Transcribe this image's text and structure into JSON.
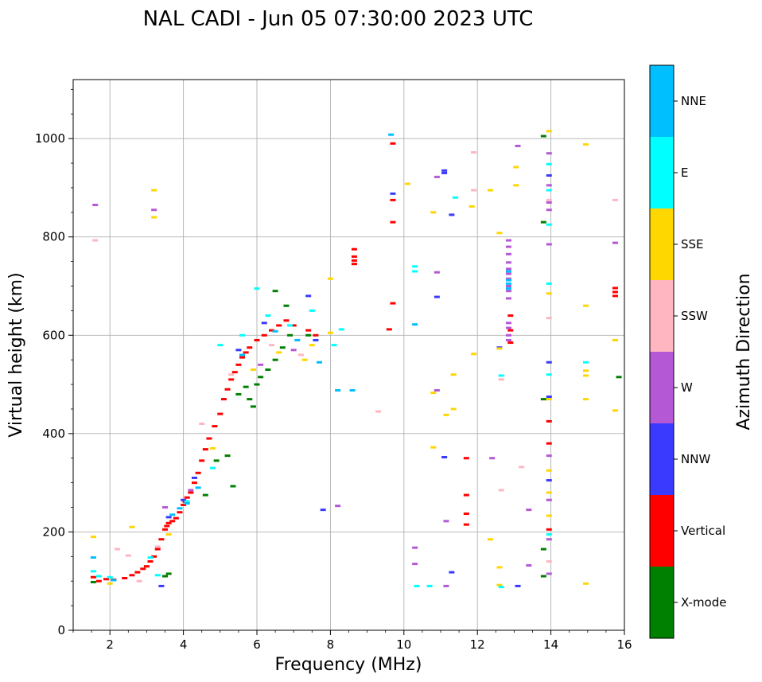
{
  "chart_data": {
    "type": "scatter",
    "title": "NAL CADI - Jun 05 07:30:00 2023 UTC",
    "xlabel": "Frequency (MHz)",
    "ylabel": "Virtual height (km)",
    "xlim": [
      1,
      16
    ],
    "ylim": [
      0,
      1120
    ],
    "xticks": [
      2,
      4,
      6,
      8,
      10,
      12,
      14,
      16
    ],
    "xtick_labels": [
      "2",
      "4",
      "6",
      "8",
      "10",
      "12",
      "14",
      "16"
    ],
    "yticks": [
      0,
      200,
      400,
      600,
      800,
      1000
    ],
    "ytick_labels": [
      "0",
      "200",
      "400",
      "600",
      "800",
      "1000"
    ],
    "grid": true,
    "colorbar": {
      "title": "Azimuth Direction",
      "categories": [
        {
          "name": "X-mode",
          "color": "#008000"
        },
        {
          "name": "Vertical",
          "color": "#ff0000"
        },
        {
          "name": "NNW",
          "color": "#3a3aff"
        },
        {
          "name": "W",
          "color": "#b558d6"
        },
        {
          "name": "SSW",
          "color": "#ffb6c1"
        },
        {
          "name": "SSE",
          "color": "#ffd700"
        },
        {
          "name": "E",
          "color": "#00ffff"
        },
        {
          "name": "NNE",
          "color": "#00bfff"
        }
      ]
    },
    "series": [
      {
        "name": "Vertical",
        "points": [
          [
            1.55,
            108
          ],
          [
            1.7,
            100
          ],
          [
            1.9,
            104
          ],
          [
            2.1,
            103
          ],
          [
            2.4,
            106
          ],
          [
            2.6,
            112
          ],
          [
            2.75,
            118
          ],
          [
            2.9,
            125
          ],
          [
            3.0,
            130
          ],
          [
            3.1,
            140
          ],
          [
            3.2,
            150
          ],
          [
            3.3,
            165
          ],
          [
            3.4,
            185
          ],
          [
            3.5,
            205
          ],
          [
            3.55,
            212
          ],
          [
            3.6,
            218
          ],
          [
            3.7,
            222
          ],
          [
            3.8,
            228
          ],
          [
            3.9,
            240
          ],
          [
            4.0,
            255
          ],
          [
            4.05,
            262
          ],
          [
            4.1,
            270
          ],
          [
            4.2,
            280
          ],
          [
            4.3,
            300
          ],
          [
            4.4,
            320
          ],
          [
            4.5,
            345
          ],
          [
            4.6,
            368
          ],
          [
            4.7,
            390
          ],
          [
            4.85,
            415
          ],
          [
            5.0,
            440
          ],
          [
            5.1,
            470
          ],
          [
            5.2,
            490
          ],
          [
            5.3,
            510
          ],
          [
            5.4,
            525
          ],
          [
            5.5,
            540
          ],
          [
            5.6,
            555
          ],
          [
            5.7,
            565
          ],
          [
            5.8,
            575
          ],
          [
            6.0,
            590
          ],
          [
            6.2,
            600
          ],
          [
            6.4,
            610
          ],
          [
            6.6,
            620
          ],
          [
            6.8,
            630
          ],
          [
            7.0,
            620
          ],
          [
            7.4,
            610
          ],
          [
            7.6,
            600
          ],
          [
            8.65,
            745
          ],
          [
            8.65,
            752
          ],
          [
            8.65,
            760
          ],
          [
            8.65,
            775
          ],
          [
            9.7,
            990
          ],
          [
            9.7,
            875
          ],
          [
            9.7,
            830
          ],
          [
            9.7,
            665
          ],
          [
            9.6,
            612
          ],
          [
            11.7,
            350
          ],
          [
            11.7,
            275
          ],
          [
            11.7,
            237
          ],
          [
            11.7,
            215
          ],
          [
            12.9,
            585
          ],
          [
            12.9,
            610
          ],
          [
            12.9,
            640
          ],
          [
            13.95,
            425
          ],
          [
            13.95,
            380
          ],
          [
            13.95,
            205
          ],
          [
            15.75,
            680
          ],
          [
            15.75,
            688
          ],
          [
            15.75,
            696
          ]
        ]
      },
      {
        "name": "X-mode",
        "points": [
          [
            1.55,
            98
          ],
          [
            3.5,
            110
          ],
          [
            3.6,
            115
          ],
          [
            4.6,
            275
          ],
          [
            4.9,
            345
          ],
          [
            5.2,
            355
          ],
          [
            5.35,
            293
          ],
          [
            5.5,
            480
          ],
          [
            5.7,
            495
          ],
          [
            5.8,
            470
          ],
          [
            5.9,
            455
          ],
          [
            6.0,
            500
          ],
          [
            6.1,
            515
          ],
          [
            6.3,
            530
          ],
          [
            6.5,
            550
          ],
          [
            6.7,
            575
          ],
          [
            6.9,
            600
          ],
          [
            6.5,
            690
          ],
          [
            6.8,
            660
          ],
          [
            7.4,
            600
          ],
          [
            13.8,
            1005
          ],
          [
            13.8,
            830
          ],
          [
            13.8,
            470
          ],
          [
            13.8,
            165
          ],
          [
            13.8,
            110
          ],
          [
            15.85,
            515
          ]
        ]
      },
      {
        "name": "NNW",
        "points": [
          [
            3.4,
            90
          ],
          [
            3.6,
            230
          ],
          [
            4.0,
            265
          ],
          [
            4.3,
            310
          ],
          [
            5.5,
            570
          ],
          [
            6.2,
            625
          ],
          [
            7.4,
            680
          ],
          [
            7.6,
            590
          ],
          [
            7.8,
            245
          ],
          [
            9.7,
            888
          ],
          [
            10.9,
            678
          ],
          [
            11.1,
            930
          ],
          [
            11.1,
            935
          ],
          [
            11.3,
            845
          ],
          [
            11.3,
            118
          ],
          [
            11.1,
            352
          ],
          [
            12.6,
            575
          ],
          [
            13.1,
            90
          ],
          [
            13.95,
            925
          ],
          [
            13.95,
            545
          ],
          [
            13.95,
            475
          ],
          [
            13.95,
            305
          ]
        ]
      },
      {
        "name": "W",
        "points": [
          [
            1.6,
            865
          ],
          [
            3.2,
            855
          ],
          [
            3.5,
            250
          ],
          [
            4.2,
            285
          ],
          [
            6.1,
            540
          ],
          [
            7.0,
            570
          ],
          [
            8.2,
            253
          ],
          [
            10.3,
            168
          ],
          [
            10.3,
            135
          ],
          [
            10.9,
            728
          ],
          [
            10.9,
            488
          ],
          [
            10.9,
            922
          ],
          [
            11.15,
            222
          ],
          [
            11.15,
            90
          ],
          [
            12.4,
            350
          ],
          [
            13.1,
            985
          ],
          [
            13.4,
            245
          ],
          [
            13.4,
            132
          ],
          [
            12.85,
            793
          ],
          [
            12.85,
            780
          ],
          [
            12.85,
            765
          ],
          [
            12.85,
            748
          ],
          [
            12.85,
            735
          ],
          [
            12.85,
            725
          ],
          [
            12.85,
            715
          ],
          [
            12.85,
            700
          ],
          [
            12.85,
            690
          ],
          [
            12.85,
            675
          ],
          [
            12.85,
            625
          ],
          [
            12.85,
            615
          ],
          [
            12.85,
            600
          ],
          [
            12.85,
            590
          ],
          [
            13.95,
            970
          ],
          [
            13.95,
            905
          ],
          [
            13.95,
            870
          ],
          [
            13.95,
            855
          ],
          [
            13.95,
            785
          ],
          [
            13.95,
            355
          ],
          [
            13.95,
            265
          ],
          [
            13.95,
            185
          ],
          [
            13.95,
            115
          ],
          [
            15.75,
            788
          ]
        ]
      },
      {
        "name": "SSW",
        "points": [
          [
            1.6,
            793
          ],
          [
            2.2,
            165
          ],
          [
            2.5,
            152
          ],
          [
            2.8,
            100
          ],
          [
            3.3,
            170
          ],
          [
            4.5,
            420
          ],
          [
            5.3,
            520
          ],
          [
            6.4,
            580
          ],
          [
            7.2,
            560
          ],
          [
            9.3,
            445
          ],
          [
            11.9,
            972
          ],
          [
            11.9,
            895
          ],
          [
            12.65,
            510
          ],
          [
            12.65,
            285
          ],
          [
            13.2,
            332
          ],
          [
            13.95,
            875
          ],
          [
            13.95,
            635
          ],
          [
            13.95,
            140
          ],
          [
            15.75,
            875
          ]
        ]
      },
      {
        "name": "SSE",
        "points": [
          [
            1.55,
            190
          ],
          [
            2.0,
            95
          ],
          [
            2.6,
            210
          ],
          [
            3.2,
            895
          ],
          [
            3.2,
            840
          ],
          [
            3.6,
            195
          ],
          [
            4.8,
            370
          ],
          [
            5.9,
            530
          ],
          [
            6.6,
            565
          ],
          [
            7.3,
            550
          ],
          [
            7.5,
            580
          ],
          [
            8.0,
            715
          ],
          [
            8.0,
            605
          ],
          [
            10.1,
            908
          ],
          [
            10.8,
            850
          ],
          [
            10.8,
            372
          ],
          [
            10.8,
            483
          ],
          [
            11.15,
            438
          ],
          [
            11.35,
            520
          ],
          [
            11.35,
            450
          ],
          [
            11.85,
            862
          ],
          [
            11.9,
            562
          ],
          [
            12.35,
            895
          ],
          [
            12.35,
            185
          ],
          [
            12.6,
            808
          ],
          [
            12.6,
            573
          ],
          [
            12.6,
            128
          ],
          [
            12.6,
            92
          ],
          [
            13.05,
            942
          ],
          [
            13.05,
            905
          ],
          [
            13.95,
            1015
          ],
          [
            13.95,
            685
          ],
          [
            13.95,
            470
          ],
          [
            13.95,
            325
          ],
          [
            13.95,
            280
          ],
          [
            13.95,
            233
          ],
          [
            14.95,
            988
          ],
          [
            14.95,
            660
          ],
          [
            14.95,
            528
          ],
          [
            14.95,
            518
          ],
          [
            14.95,
            470
          ],
          [
            14.95,
            95
          ],
          [
            15.75,
            590
          ],
          [
            15.75,
            447
          ]
        ]
      },
      {
        "name": "E",
        "points": [
          [
            1.55,
            120
          ],
          [
            1.7,
            110
          ],
          [
            2.0,
            108
          ],
          [
            3.1,
            148
          ],
          [
            3.3,
            112
          ],
          [
            4.1,
            262
          ],
          [
            4.8,
            330
          ],
          [
            5.0,
            580
          ],
          [
            5.6,
            600
          ],
          [
            6.0,
            695
          ],
          [
            6.3,
            640
          ],
          [
            6.9,
            620
          ],
          [
            7.5,
            650
          ],
          [
            8.1,
            580
          ],
          [
            8.3,
            612
          ],
          [
            10.3,
            740
          ],
          [
            10.3,
            730
          ],
          [
            10.35,
            90
          ],
          [
            10.7,
            90
          ],
          [
            11.4,
            880
          ],
          [
            12.65,
            518
          ],
          [
            12.65,
            88
          ],
          [
            13.95,
            948
          ],
          [
            13.95,
            895
          ],
          [
            13.95,
            825
          ],
          [
            13.95,
            705
          ],
          [
            13.95,
            520
          ],
          [
            13.95,
            195
          ],
          [
            14.95,
            545
          ]
        ]
      },
      {
        "name": "NNE",
        "points": [
          [
            1.55,
            148
          ],
          [
            2.1,
            102
          ],
          [
            3.7,
            235
          ],
          [
            3.9,
            248
          ],
          [
            4.1,
            258
          ],
          [
            4.4,
            290
          ],
          [
            5.6,
            560
          ],
          [
            6.5,
            608
          ],
          [
            7.1,
            590
          ],
          [
            7.7,
            545
          ],
          [
            8.2,
            488
          ],
          [
            8.6,
            488
          ],
          [
            9.65,
            1008
          ],
          [
            10.3,
            622
          ],
          [
            12.85,
            730
          ],
          [
            12.85,
            712
          ],
          [
            12.85,
            705
          ],
          [
            12.85,
            695
          ]
        ]
      }
    ]
  }
}
